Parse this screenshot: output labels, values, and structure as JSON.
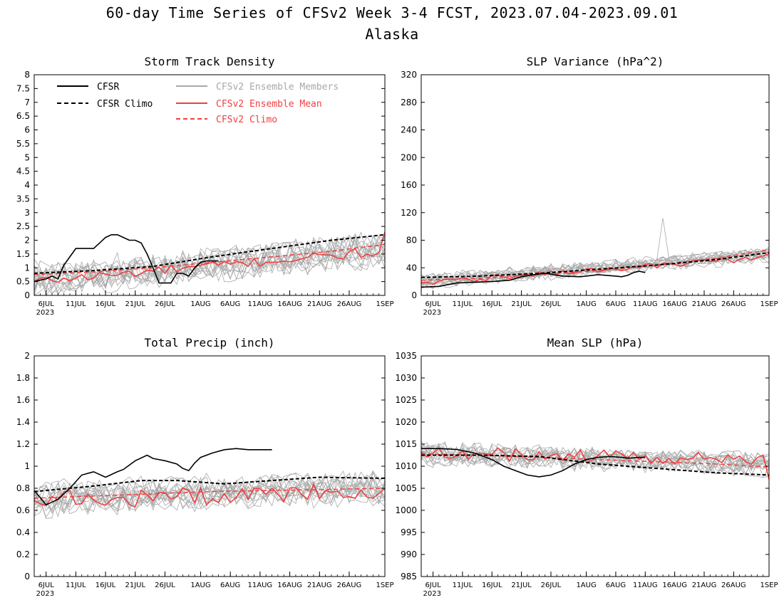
{
  "page": {
    "title": "60-day Time Series of CFSv2 Week 3-4 FCST, 2023.07.04-2023.09.01",
    "subtitle": "Alaska"
  },
  "colors": {
    "cfsr": "#000000",
    "ensemble_members": "#a8a8a8",
    "ensemble_mean": "#ef4040",
    "cfsv2_climo": "#ef4040"
  },
  "legend": {
    "cfsr": "CFSR",
    "cfsr_climo": "CFSR Climo",
    "members": "CFSv2 Ensemble Members",
    "mean": "CFSv2 Ensemble Mean",
    "cfsv2_climo": "CFSv2 Climo"
  },
  "x_axis": {
    "days": 60,
    "ticks": [
      {
        "day": 2,
        "label": "6JUL",
        "sub": "2023"
      },
      {
        "day": 7,
        "label": "11JUL"
      },
      {
        "day": 12,
        "label": "16JUL"
      },
      {
        "day": 17,
        "label": "21JUL"
      },
      {
        "day": 22,
        "label": "26JUL"
      },
      {
        "day": 28,
        "label": "1AUG"
      },
      {
        "day": 33,
        "label": "6AUG"
      },
      {
        "day": 38,
        "label": "11AUG"
      },
      {
        "day": 43,
        "label": "16AUG"
      },
      {
        "day": 48,
        "label": "21AUG"
      },
      {
        "day": 53,
        "label": "26AUG"
      },
      {
        "day": 59,
        "label": "1SEP"
      }
    ]
  },
  "chart_data": [
    {
      "type": "line",
      "title": "Storm Track Density",
      "ylim": [
        0,
        8
      ],
      "yticks": [
        "0",
        "0.5",
        "1",
        "1.5",
        "2",
        "2.5",
        "3",
        "3.5",
        "4",
        "4.5",
        "5",
        "5.5",
        "6",
        "6.5",
        "7",
        "7.5",
        "8"
      ],
      "ytick_values": [
        0,
        0.5,
        1,
        1.5,
        2,
        2.5,
        3,
        3.5,
        4,
        4.5,
        5,
        5.5,
        6,
        6.5,
        7,
        7.5,
        8
      ],
      "legend": true,
      "cfsr": {
        "x": [
          0,
          2,
          3,
          4,
          5,
          7,
          8,
          9,
          10,
          11,
          12,
          13,
          14,
          15,
          16,
          17,
          18,
          19,
          20,
          21,
          22,
          23,
          24,
          25,
          26,
          27,
          28,
          29,
          30,
          31
        ],
        "y": [
          0.5,
          0.6,
          0.7,
          0.6,
          1.1,
          1.7,
          1.7,
          1.7,
          1.7,
          1.9,
          2.1,
          2.2,
          2.2,
          2.1,
          2.0,
          2.0,
          1.9,
          1.5,
          1.0,
          0.45,
          0.45,
          0.45,
          0.8,
          0.8,
          0.7,
          1.0,
          1.2,
          1.25,
          1.25,
          1.25
        ]
      },
      "cfsr_climo": {
        "x": [
          0,
          10,
          20,
          30,
          40,
          50,
          59
        ],
        "y": [
          0.8,
          0.9,
          1.05,
          1.4,
          1.7,
          2.0,
          2.2
        ]
      },
      "cfsv2_climo": {
        "x": [
          0,
          10,
          20,
          30,
          40,
          50,
          59
        ],
        "y": [
          0.75,
          0.85,
          1.0,
          1.2,
          1.4,
          1.6,
          1.85
        ]
      },
      "mean": {
        "start": 0.5,
        "end": 1.6,
        "amp": 0.18,
        "final": 2.3
      },
      "members": {
        "count": 16,
        "start": 0.55,
        "end": 1.6,
        "spread": 0.55,
        "noise": 0.5,
        "lo": 0
      }
    },
    {
      "type": "line",
      "title": "SLP Variance (hPa^2)",
      "ylim": [
        0,
        320
      ],
      "yticks": [
        "0",
        "40",
        "80",
        "120",
        "160",
        "200",
        "240",
        "280",
        "320"
      ],
      "ytick_values": [
        0,
        40,
        80,
        120,
        160,
        200,
        240,
        280,
        320
      ],
      "cfsr": {
        "x": [
          0,
          3,
          6,
          9,
          12,
          15,
          17,
          19,
          21,
          24,
          27,
          30,
          33,
          34,
          35,
          36,
          37,
          38
        ],
        "y": [
          12,
          13,
          18,
          19,
          20,
          22,
          27,
          30,
          32,
          28,
          27,
          30,
          28,
          27,
          29,
          33,
          35,
          33
        ]
      },
      "cfsr_climo": {
        "x": [
          0,
          10,
          20,
          30,
          40,
          50,
          59
        ],
        "y": [
          26,
          28,
          32,
          38,
          44,
          52,
          62
        ]
      },
      "cfsv2_climo": {
        "x": [
          0,
          10,
          20,
          30,
          40,
          50,
          59
        ],
        "y": [
          22,
          25,
          30,
          36,
          44,
          54,
          66
        ]
      },
      "mean": {
        "start": 18,
        "end": 55,
        "amp": 4,
        "final": 60
      },
      "members": {
        "count": 16,
        "start": 20,
        "end": 58,
        "spread": 10,
        "noise": 9,
        "lo": 5,
        "spike_day": 41,
        "spike_val": 112
      }
    },
    {
      "type": "line",
      "title": "Total Precip (inch)",
      "ylim": [
        0,
        2
      ],
      "yticks": [
        "0",
        "0.2",
        "0.4",
        "0.6",
        "0.8",
        "1",
        "1.2",
        "1.4",
        "1.6",
        "1.8",
        "2"
      ],
      "ytick_values": [
        0,
        0.2,
        0.4,
        0.6,
        0.8,
        1,
        1.2,
        1.4,
        1.6,
        1.8,
        2
      ],
      "cfsr": {
        "x": [
          0,
          2,
          4,
          6,
          8,
          10,
          12,
          14,
          15,
          17,
          19,
          20,
          22,
          24,
          25,
          26,
          27,
          28,
          30,
          32,
          34,
          36,
          38,
          40
        ],
        "y": [
          0.78,
          0.65,
          0.7,
          0.8,
          0.92,
          0.95,
          0.9,
          0.95,
          0.97,
          1.05,
          1.1,
          1.07,
          1.05,
          1.02,
          0.98,
          0.96,
          1.03,
          1.08,
          1.12,
          1.15,
          1.16,
          1.15,
          1.15,
          1.15
        ]
      },
      "cfsr_climo": {
        "x": [
          0,
          10,
          18,
          24,
          32,
          40,
          48,
          59
        ],
        "y": [
          0.77,
          0.82,
          0.87,
          0.87,
          0.84,
          0.87,
          0.9,
          0.89
        ]
      },
      "cfsv2_climo": {
        "x": [
          0,
          10,
          20,
          30,
          40,
          50,
          59
        ],
        "y": [
          0.71,
          0.73,
          0.75,
          0.77,
          0.78,
          0.79,
          0.8
        ]
      },
      "mean": {
        "start": 0.68,
        "end": 0.78,
        "amp": 0.09,
        "final": 0.8
      },
      "members": {
        "count": 16,
        "start": 0.7,
        "end": 0.8,
        "spread": 0.14,
        "noise": 0.12,
        "lo": 0.22
      }
    },
    {
      "type": "line",
      "title": "Mean SLP (hPa)",
      "ylim": [
        985,
        1035
      ],
      "yticks": [
        "985",
        "990",
        "995",
        "1000",
        "1005",
        "1010",
        "1015",
        "1020",
        "1025",
        "1030",
        "1035"
      ],
      "ytick_values": [
        985,
        990,
        995,
        1000,
        1005,
        1010,
        1015,
        1020,
        1025,
        1030,
        1035
      ],
      "cfsr": {
        "x": [
          0,
          3,
          6,
          9,
          12,
          14,
          16,
          18,
          20,
          22,
          24,
          26,
          28,
          30,
          32,
          34,
          35,
          36,
          37,
          38
        ],
        "y": [
          1014,
          1014,
          1013.8,
          1013,
          1011.5,
          1010,
          1009,
          1008,
          1007.6,
          1008,
          1009,
          1010.5,
          1011.5,
          1012,
          1012.2,
          1012,
          1011.8,
          1011.9,
          1012,
          1012
        ]
      },
      "cfsr_climo": {
        "x": [
          0,
          10,
          20,
          30,
          40,
          50,
          59
        ],
        "y": [
          1012.5,
          1012.5,
          1012.2,
          1010.5,
          1009.5,
          1008.5,
          1008
        ]
      },
      "cfsv2_climo": {
        "x": [
          0,
          10,
          20,
          30,
          40,
          50,
          59
        ],
        "y": [
          1012.8,
          1012.5,
          1012.0,
          1011.5,
          1011.0,
          1010.5,
          1009.8
        ]
      },
      "mean": {
        "start": 1013,
        "end": 1011.5,
        "amp": 1.5,
        "final": 1007
      },
      "members": {
        "count": 16,
        "start": 1013,
        "end": 1010.5,
        "spread": 2.5,
        "noise": 2.2,
        "lo": 1002
      }
    }
  ]
}
